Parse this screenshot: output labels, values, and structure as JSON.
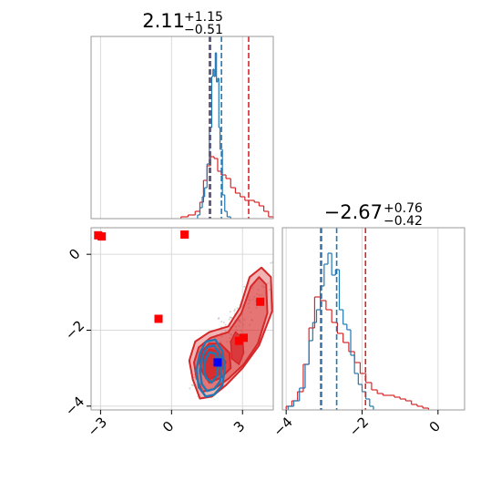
{
  "colors": {
    "blue": "#1f77b4",
    "red": "#d62728",
    "marker_red": "#ff0000",
    "marker_blue": "#0000ff",
    "grid": "#d9d9d9",
    "frame": "#999999"
  },
  "chart_data": [
    {
      "panel": "marginal-x",
      "type": "histogram",
      "title": {
        "value": "2.11",
        "plus": "+1.15",
        "minus": "−0.51"
      },
      "xlim": [
        -3.4,
        4.3
      ],
      "ylim": [
        0,
        1
      ],
      "grid": true,
      "series": [
        {
          "color": "red",
          "bins": [
            {
              "x0": 0.4,
              "x1": 0.7,
              "y": 0.01
            },
            {
              "x0": 0.7,
              "x1": 1.0,
              "y": 0.02
            },
            {
              "x0": 1.0,
              "x1": 1.2,
              "y": 0.04
            },
            {
              "x0": 1.2,
              "x1": 1.35,
              "y": 0.09
            },
            {
              "x0": 1.35,
              "x1": 1.5,
              "y": 0.21
            },
            {
              "x0": 1.5,
              "x1": 1.65,
              "y": 0.29
            },
            {
              "x0": 1.65,
              "x1": 1.8,
              "y": 0.34
            },
            {
              "x0": 1.8,
              "x1": 1.95,
              "y": 0.33
            },
            {
              "x0": 1.95,
              "x1": 2.1,
              "y": 0.26
            },
            {
              "x0": 2.1,
              "x1": 2.3,
              "y": 0.24
            },
            {
              "x0": 2.3,
              "x1": 2.5,
              "y": 0.22
            },
            {
              "x0": 2.5,
              "x1": 2.7,
              "y": 0.17
            },
            {
              "x0": 2.7,
              "x1": 2.9,
              "y": 0.14
            },
            {
              "x0": 2.9,
              "x1": 3.1,
              "y": 0.12
            },
            {
              "x0": 3.1,
              "x1": 3.3,
              "y": 0.1
            },
            {
              "x0": 3.3,
              "x1": 3.5,
              "y": 0.1
            },
            {
              "x0": 3.5,
              "x1": 3.7,
              "y": 0.09
            },
            {
              "x0": 3.7,
              "x1": 3.9,
              "y": 0.07
            },
            {
              "x0": 3.9,
              "x1": 4.1,
              "y": 0.04
            },
            {
              "x0": 4.1,
              "x1": 4.3,
              "y": 0.01
            }
          ]
        },
        {
          "color": "blue",
          "bins": [
            {
              "x0": 1.1,
              "x1": 1.2,
              "y": 0.02
            },
            {
              "x0": 1.2,
              "x1": 1.3,
              "y": 0.06
            },
            {
              "x0": 1.3,
              "x1": 1.4,
              "y": 0.12
            },
            {
              "x0": 1.4,
              "x1": 1.5,
              "y": 0.17
            },
            {
              "x0": 1.5,
              "x1": 1.6,
              "y": 0.3
            },
            {
              "x0": 1.6,
              "x1": 1.7,
              "y": 0.5
            },
            {
              "x0": 1.7,
              "x1": 1.75,
              "y": 0.78
            },
            {
              "x0": 1.75,
              "x1": 1.8,
              "y": 0.82
            },
            {
              "x0": 1.8,
              "x1": 1.85,
              "y": 0.78
            },
            {
              "x0": 1.85,
              "x1": 1.9,
              "y": 0.91
            },
            {
              "x0": 1.9,
              "x1": 1.95,
              "y": 0.75
            },
            {
              "x0": 1.95,
              "x1": 2.0,
              "y": 0.77
            },
            {
              "x0": 2.0,
              "x1": 2.05,
              "y": 0.5
            },
            {
              "x0": 2.05,
              "x1": 2.15,
              "y": 0.38
            },
            {
              "x0": 2.15,
              "x1": 2.25,
              "y": 0.13
            },
            {
              "x0": 2.25,
              "x1": 2.35,
              "y": 0.04
            },
            {
              "x0": 2.35,
              "x1": 2.5,
              "y": 0.01
            }
          ]
        }
      ],
      "vlines": [
        {
          "x": 1.6,
          "color": "red"
        },
        {
          "x": 1.65,
          "color": "blue"
        },
        {
          "x": 2.11,
          "color": "blue"
        },
        {
          "x": 3.26,
          "color": "red"
        }
      ]
    },
    {
      "panel": "joint",
      "type": "contour-scatter",
      "xlim": [
        -3.4,
        4.3
      ],
      "ylim": [
        -4.1,
        0.7
      ],
      "grid": true,
      "x_ticks": [
        {
          "value": -3,
          "label": "−3"
        },
        {
          "value": 0,
          "label": "0"
        },
        {
          "value": 3,
          "label": "3"
        }
      ],
      "y_ticks": [
        {
          "value": 0,
          "label": "0"
        },
        {
          "value": -2,
          "label": "−2"
        },
        {
          "value": -4,
          "label": "−4"
        }
      ],
      "red_contours": [
        {
          "level": "outer",
          "points": [
            [
              0.9,
              -3.3
            ],
            [
              1.2,
              -3.8
            ],
            [
              1.7,
              -3.75
            ],
            [
              2.3,
              -3.45
            ],
            [
              3.0,
              -3.0
            ],
            [
              3.7,
              -2.4
            ],
            [
              4.25,
              -1.5
            ],
            [
              4.2,
              -0.6
            ],
            [
              3.8,
              -0.35
            ],
            [
              3.3,
              -0.6
            ],
            [
              2.9,
              -1.4
            ],
            [
              2.4,
              -1.9
            ],
            [
              1.6,
              -2.05
            ],
            [
              1.0,
              -2.3
            ],
            [
              0.75,
              -2.8
            ]
          ]
        },
        {
          "level": "mid",
          "points": [
            [
              1.05,
              -3.25
            ],
            [
              1.3,
              -3.62
            ],
            [
              1.8,
              -3.55
            ],
            [
              2.4,
              -3.28
            ],
            [
              3.05,
              -2.9
            ],
            [
              3.65,
              -2.35
            ],
            [
              4.05,
              -1.55
            ],
            [
              4.0,
              -0.8
            ],
            [
              3.7,
              -0.6
            ],
            [
              3.35,
              -0.85
            ],
            [
              2.95,
              -1.55
            ],
            [
              2.4,
              -2.05
            ],
            [
              1.65,
              -2.2
            ],
            [
              1.15,
              -2.45
            ],
            [
              0.95,
              -2.85
            ]
          ]
        },
        {
          "level": "inner",
          "points": [
            [
              1.3,
              -3.1
            ],
            [
              1.6,
              -3.38
            ],
            [
              2.1,
              -3.25
            ],
            [
              2.5,
              -3.0
            ],
            [
              2.45,
              -2.6
            ],
            [
              2.05,
              -2.35
            ],
            [
              1.6,
              -2.35
            ],
            [
              1.3,
              -2.55
            ],
            [
              1.18,
              -2.85
            ]
          ]
        }
      ],
      "red_core_blobs": [
        {
          "points": [
            [
              1.35,
              -3.05
            ],
            [
              1.6,
              -3.3
            ],
            [
              2.05,
              -3.15
            ],
            [
              2.3,
              -2.85
            ],
            [
              2.0,
              -2.55
            ],
            [
              1.6,
              -2.5
            ],
            [
              1.35,
              -2.7
            ]
          ]
        },
        {
          "points": [
            [
              2.55,
              -2.75
            ],
            [
              2.85,
              -2.9
            ],
            [
              3.05,
              -2.6
            ],
            [
              3.0,
              -2.2
            ],
            [
              2.7,
              -2.05
            ],
            [
              2.5,
              -2.3
            ]
          ]
        }
      ],
      "blue_contours": [
        {
          "level": "outer",
          "points": [
            [
              1.15,
              -3.5
            ],
            [
              1.45,
              -3.75
            ],
            [
              1.8,
              -3.7
            ],
            [
              2.15,
              -3.45
            ],
            [
              2.25,
              -3.0
            ],
            [
              2.15,
              -2.55
            ],
            [
              1.85,
              -2.25
            ],
            [
              1.45,
              -2.3
            ],
            [
              1.2,
              -2.6
            ],
            [
              1.05,
              -3.05
            ]
          ]
        },
        {
          "level": "mid",
          "points": [
            [
              1.28,
              -3.42
            ],
            [
              1.5,
              -3.6
            ],
            [
              1.8,
              -3.55
            ],
            [
              2.05,
              -3.35
            ],
            [
              2.12,
              -2.95
            ],
            [
              2.02,
              -2.6
            ],
            [
              1.78,
              -2.4
            ],
            [
              1.5,
              -2.45
            ],
            [
              1.3,
              -2.7
            ],
            [
              1.2,
              -3.05
            ]
          ]
        },
        {
          "level": "inner",
          "points": [
            [
              1.45,
              -3.25
            ],
            [
              1.7,
              -3.38
            ],
            [
              1.92,
              -3.2
            ],
            [
              1.98,
              -2.9
            ],
            [
              1.85,
              -2.62
            ],
            [
              1.6,
              -2.58
            ],
            [
              1.42,
              -2.8
            ],
            [
              1.38,
              -3.05
            ]
          ]
        }
      ],
      "red_markers": [
        {
          "x": -3.1,
          "y": 0.5
        },
        {
          "x": -2.95,
          "y": 0.47
        },
        {
          "x": -0.55,
          "y": -1.7
        },
        {
          "x": 0.55,
          "y": 0.52
        },
        {
          "x": 2.85,
          "y": -2.28
        },
        {
          "x": 3.05,
          "y": -2.2
        },
        {
          "x": 3.75,
          "y": -1.25
        }
      ],
      "blue_markers": [
        {
          "x": 1.95,
          "y": -2.85
        }
      ]
    },
    {
      "panel": "marginal-y",
      "type": "histogram",
      "title": {
        "value": "−2.67",
        "plus": "+0.76",
        "minus": "−0.42"
      },
      "xlim": [
        -4.1,
        0.7
      ],
      "ylim": [
        0,
        1
      ],
      "grid": true,
      "x_ticks": [
        {
          "value": -4,
          "label": "−4"
        },
        {
          "value": -2,
          "label": "−2"
        },
        {
          "value": 0,
          "label": "0"
        }
      ],
      "series": [
        {
          "color": "red",
          "bins": [
            {
              "x0": -4.0,
              "x1": -3.85,
              "y": 0.02
            },
            {
              "x0": -3.85,
              "x1": -3.7,
              "y": 0.05
            },
            {
              "x0": -3.7,
              "x1": -3.55,
              "y": 0.1
            },
            {
              "x0": -3.55,
              "x1": -3.4,
              "y": 0.25
            },
            {
              "x0": -3.4,
              "x1": -3.25,
              "y": 0.45
            },
            {
              "x0": -3.25,
              "x1": -3.1,
              "y": 0.62
            },
            {
              "x0": -3.1,
              "x1": -2.95,
              "y": 0.6
            },
            {
              "x0": -2.95,
              "x1": -2.8,
              "y": 0.55
            },
            {
              "x0": -2.8,
              "x1": -2.65,
              "y": 0.48
            },
            {
              "x0": -2.65,
              "x1": -2.5,
              "y": 0.42
            },
            {
              "x0": -2.5,
              "x1": -2.35,
              "y": 0.37
            },
            {
              "x0": -2.35,
              "x1": -2.2,
              "y": 0.32
            },
            {
              "x0": -2.2,
              "x1": -2.05,
              "y": 0.26
            },
            {
              "x0": -2.05,
              "x1": -1.9,
              "y": 0.2
            },
            {
              "x0": -1.9,
              "x1": -1.75,
              "y": 0.15
            },
            {
              "x0": -1.75,
              "x1": -1.6,
              "y": 0.11
            },
            {
              "x0": -1.6,
              "x1": -1.45,
              "y": 0.09
            },
            {
              "x0": -1.45,
              "x1": -1.3,
              "y": 0.08
            },
            {
              "x0": -1.3,
              "x1": -1.15,
              "y": 0.08
            },
            {
              "x0": -1.15,
              "x1": -1.0,
              "y": 0.07
            },
            {
              "x0": -1.0,
              "x1": -0.85,
              "y": 0.06
            },
            {
              "x0": -0.85,
              "x1": -0.7,
              "y": 0.05
            },
            {
              "x0": -0.7,
              "x1": -0.55,
              "y": 0.03
            },
            {
              "x0": -0.55,
              "x1": -0.4,
              "y": 0.02
            },
            {
              "x0": -0.4,
              "x1": -0.25,
              "y": 0.01
            }
          ]
        },
        {
          "color": "blue",
          "bins": [
            {
              "x0": -3.95,
              "x1": -3.8,
              "y": 0.02
            },
            {
              "x0": -3.8,
              "x1": -3.65,
              "y": 0.05
            },
            {
              "x0": -3.65,
              "x1": -3.5,
              "y": 0.12
            },
            {
              "x0": -3.5,
              "x1": -3.4,
              "y": 0.25
            },
            {
              "x0": -3.4,
              "x1": -3.3,
              "y": 0.38
            },
            {
              "x0": -3.3,
              "x1": -3.2,
              "y": 0.48
            },
            {
              "x0": -3.2,
              "x1": -3.1,
              "y": 0.55
            },
            {
              "x0": -3.1,
              "x1": -3.0,
              "y": 0.68
            },
            {
              "x0": -3.0,
              "x1": -2.9,
              "y": 0.8
            },
            {
              "x0": -2.9,
              "x1": -2.8,
              "y": 0.86
            },
            {
              "x0": -2.8,
              "x1": -2.7,
              "y": 0.74
            },
            {
              "x0": -2.7,
              "x1": -2.6,
              "y": 0.77
            },
            {
              "x0": -2.6,
              "x1": -2.5,
              "y": 0.55
            },
            {
              "x0": -2.5,
              "x1": -2.4,
              "y": 0.47
            },
            {
              "x0": -2.4,
              "x1": -2.3,
              "y": 0.44
            },
            {
              "x0": -2.3,
              "x1": -2.2,
              "y": 0.3
            },
            {
              "x0": -2.2,
              "x1": -2.1,
              "y": 0.2
            },
            {
              "x0": -2.1,
              "x1": -2.0,
              "y": 0.14
            },
            {
              "x0": -2.0,
              "x1": -1.9,
              "y": 0.1
            },
            {
              "x0": -1.9,
              "x1": -1.8,
              "y": 0.06
            },
            {
              "x0": -1.8,
              "x1": -1.7,
              "y": 0.02
            }
          ]
        }
      ],
      "vlines": [
        {
          "x": -3.09,
          "color": "red"
        },
        {
          "x": -3.07,
          "color": "blue"
        },
        {
          "x": -2.67,
          "color": "blue"
        },
        {
          "x": -1.91,
          "color": "red"
        }
      ]
    }
  ]
}
